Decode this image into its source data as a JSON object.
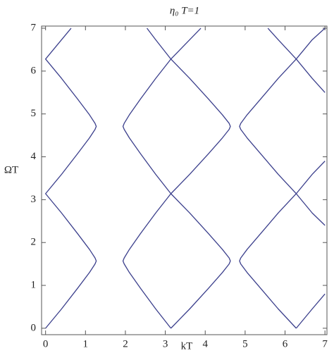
{
  "chart_data": {
    "type": "line",
    "title": "η₀ T=1",
    "xlabel": "kT",
    "ylabel": "ΩT",
    "xlim": [
      -0.1,
      7.05
    ],
    "ylim": [
      -0.15,
      7.05
    ],
    "xticks": [
      0,
      1,
      2,
      3,
      4,
      5,
      6,
      7
    ],
    "yticks": [
      0,
      1,
      2,
      3,
      4,
      5,
      6,
      7
    ],
    "series": [
      {
        "color": "#3b3f8c",
        "x": [
          0,
          0.4,
          0.8,
          1.1,
          1.24,
          1.27,
          1.24,
          1.1,
          0.8,
          0.4,
          0,
          0.4,
          0.8,
          1.1,
          1.24,
          1.27,
          1.24,
          1.1,
          0.8,
          0.4,
          0,
          0.4,
          0.64
        ],
        "y": [
          0,
          0.45,
          0.93,
          1.3,
          1.5,
          1.57,
          1.64,
          1.84,
          2.21,
          2.69,
          3.14,
          3.59,
          4.07,
          4.44,
          4.64,
          4.71,
          4.78,
          4.98,
          5.35,
          5.83,
          6.28,
          6.73,
          7.0
        ]
      },
      {
        "color": "#3b3f8c",
        "x": [
          3.14,
          2.76,
          2.38,
          2.1,
          1.97,
          1.94,
          1.97,
          2.1,
          2.38,
          2.76,
          3.14,
          2.76,
          2.38,
          2.1,
          1.97,
          1.94,
          1.97,
          2.1,
          2.38,
          2.76,
          3.14,
          2.76,
          2.54
        ],
        "y": [
          0,
          0.45,
          0.93,
          1.3,
          1.5,
          1.57,
          1.64,
          1.84,
          2.21,
          2.69,
          3.14,
          3.59,
          4.07,
          4.44,
          4.64,
          4.71,
          4.78,
          4.98,
          5.35,
          5.83,
          6.28,
          6.73,
          7.0
        ]
      },
      {
        "color": "#3b3f8c",
        "x": [
          3.14,
          3.61,
          4.08,
          4.43,
          4.6,
          4.63,
          4.6,
          4.43,
          4.08,
          3.61,
          3.14,
          3.61,
          4.08,
          4.43,
          4.6,
          4.63,
          4.6,
          4.43,
          4.08,
          3.61,
          3.14,
          3.61,
          3.89
        ],
        "y": [
          0,
          0.45,
          0.93,
          1.3,
          1.5,
          1.57,
          1.64,
          1.84,
          2.21,
          2.69,
          3.14,
          3.59,
          4.07,
          4.44,
          4.64,
          4.71,
          4.78,
          4.98,
          5.35,
          5.83,
          6.28,
          6.73,
          7.0
        ]
      },
      {
        "color": "#3b3f8c",
        "x": [
          6.28,
          5.83,
          5.39,
          5.05,
          4.89,
          4.86,
          4.89,
          5.05,
          5.39,
          5.83,
          6.28,
          5.83,
          5.39,
          5.05,
          4.89,
          4.86,
          4.89,
          5.05,
          5.39,
          5.83,
          6.28,
          5.83,
          5.57
        ],
        "y": [
          0,
          0.45,
          0.93,
          1.3,
          1.5,
          1.57,
          1.64,
          1.84,
          2.21,
          2.69,
          3.14,
          3.59,
          4.07,
          4.44,
          4.64,
          4.71,
          4.78,
          4.98,
          5.35,
          5.83,
          6.28,
          6.73,
          7.0
        ]
      },
      {
        "color": "#3b3f8c",
        "x": [
          6.28,
          6.68,
          7,
          null,
          7,
          6.68,
          6.28,
          6.68,
          7,
          null,
          7,
          6.68,
          6.28,
          6.68,
          7
        ],
        "y": [
          0,
          0.45,
          0.8,
          null,
          2.4,
          2.69,
          3.14,
          3.59,
          3.9,
          null,
          5.5,
          5.83,
          6.28,
          6.73,
          7
        ]
      }
    ]
  }
}
